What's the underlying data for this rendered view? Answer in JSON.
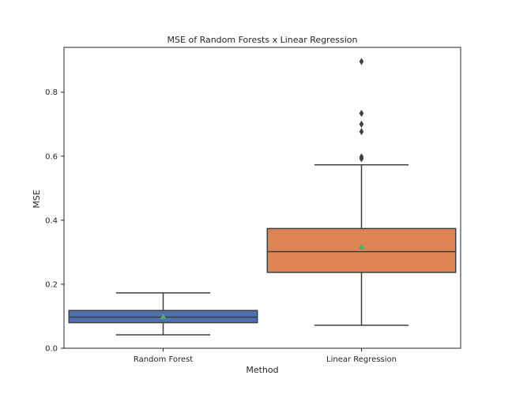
{
  "chart_data": {
    "type": "box",
    "title": "MSE of Random Forests x Linear Regression",
    "xlabel": "Method",
    "ylabel": "MSE",
    "categories": [
      "Random Forest",
      "Linear Regression"
    ],
    "ylim": [
      0.0,
      0.94
    ],
    "yticks": [
      0.0,
      0.2,
      0.4,
      0.6,
      0.8
    ],
    "ytick_labels": [
      "0.0",
      "0.2",
      "0.4",
      "0.6",
      "0.8"
    ],
    "grid": false,
    "series": [
      {
        "category": "Random Forest",
        "color": "#4C72B0",
        "whisker_low": 0.042,
        "q1": 0.08,
        "median": 0.097,
        "q3": 0.118,
        "whisker_high": 0.173,
        "mean": 0.099,
        "outliers": []
      },
      {
        "category": "Linear Regression",
        "color": "#DD8452",
        "whisker_low": 0.072,
        "q1": 0.237,
        "median": 0.302,
        "q3": 0.374,
        "whisker_high": 0.573,
        "mean": 0.317,
        "outliers": [
          0.592,
          0.598,
          0.677,
          0.7,
          0.734,
          0.896
        ]
      }
    ],
    "colors": {
      "mean_marker": "#55A868",
      "box_edge": "#3F3F3F",
      "axes": "#262626",
      "outlier": "#3F3F3F"
    }
  }
}
